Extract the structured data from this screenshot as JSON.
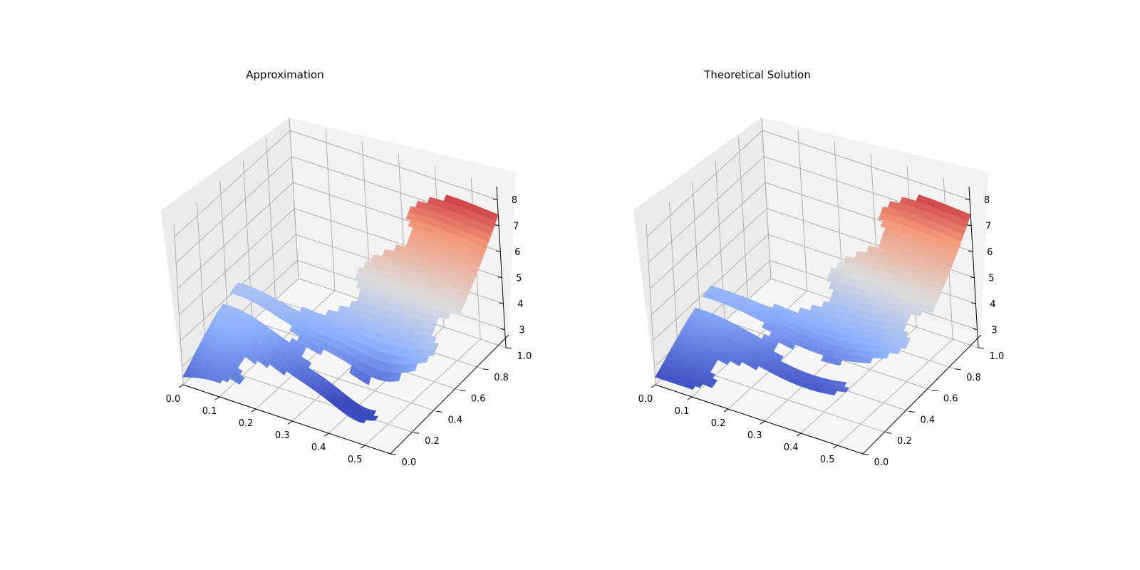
{
  "chart_data": [
    {
      "type": "surface3d",
      "title": "Approximation",
      "colormap": "coolwarm",
      "colormap_stops": [
        "#3b4cc0",
        "#8db0fe",
        "#dddcdc",
        "#f49a7b",
        "#b40426"
      ],
      "x_ticks": [
        "0.0",
        "0.1",
        "0.2",
        "0.3",
        "0.4",
        "0.5"
      ],
      "y_ticks": [
        "0.0",
        "0.2",
        "0.4",
        "0.6",
        "0.8",
        "1.0"
      ],
      "z_ticks": [
        "3",
        "4",
        "5",
        "6",
        "7",
        "8"
      ],
      "xlim": [
        0,
        0.57
      ],
      "ylim": [
        0,
        1.0
      ],
      "zlim": [
        2.3,
        8.5
      ],
      "grid": true,
      "surface_min_z": 2.1,
      "surface_max_z": 8.1
    },
    {
      "type": "surface3d",
      "title": "Theoretical Solution",
      "colormap": "coolwarm",
      "colormap_stops": [
        "#3b4cc0",
        "#8db0fe",
        "#dddcdc",
        "#f49a7b",
        "#b40426"
      ],
      "x_ticks": [
        "0.0",
        "0.1",
        "0.2",
        "0.3",
        "0.4",
        "0.5"
      ],
      "y_ticks": [
        "0.0",
        "0.2",
        "0.4",
        "0.6",
        "0.8",
        "1.0"
      ],
      "z_ticks": [
        "3",
        "4",
        "5",
        "6",
        "7",
        "8"
      ],
      "xlim": [
        0,
        0.57
      ],
      "ylim": [
        0,
        1.0
      ],
      "zlim": [
        2.3,
        8.5
      ],
      "grid": true,
      "surface_min_z": 2.5,
      "surface_max_z": 8.1
    }
  ]
}
